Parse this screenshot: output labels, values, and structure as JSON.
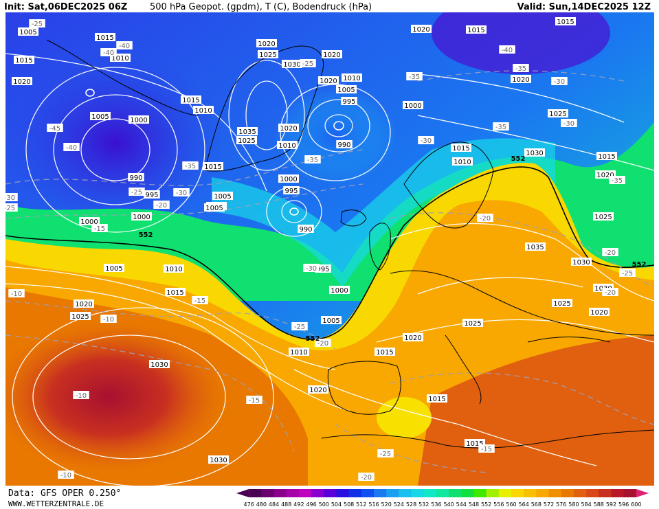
{
  "header": {
    "init": "Init: Sat,06DEC2025 06Z",
    "title": "500 hPa Geopot. (gpdm), T (C), Bodendruck (hPa)",
    "valid": "Valid: Sun,14DEC2025 12Z"
  },
  "footer": {
    "data_source": "Data: GFS OPER 0.250°",
    "website": "WWW.WETTERZENTRALE.DE"
  },
  "colorscale": {
    "labels": [
      "476",
      "480",
      "484",
      "488",
      "492",
      "496",
      "500",
      "504",
      "508",
      "512",
      "516",
      "520",
      "524",
      "528",
      "532",
      "536",
      "540",
      "544",
      "548",
      "552",
      "556",
      "560",
      "564",
      "568",
      "572",
      "576",
      "580",
      "584",
      "588",
      "592",
      "596",
      "600"
    ],
    "colors": [
      "#4a0052",
      "#6a0070",
      "#8a008c",
      "#a600a6",
      "#c000c0",
      "#8800d0",
      "#5a00d8",
      "#2a10e0",
      "#1030e8",
      "#1050f0",
      "#1a78f0",
      "#1aa0f0",
      "#1ac0f0",
      "#18d8e8",
      "#10e8c8",
      "#10e8a0",
      "#10e070",
      "#10e040",
      "#40e800",
      "#a0f000",
      "#e8f000",
      "#f8d800",
      "#f8c000",
      "#f8a800",
      "#f09000",
      "#e87800",
      "#e06010",
      "#d84818",
      "#c83020",
      "#b81828",
      "#a81030",
      "#e02070"
    ]
  },
  "map": {
    "pressure_labels": [
      "1005",
      "1015",
      "1010",
      "1020",
      "1005",
      "1000",
      "990",
      "995",
      "1000",
      "1005",
      "1015",
      "1025",
      "1020",
      "1030",
      "1015",
      "1020",
      "1035",
      "1025",
      "1015",
      "1010",
      "1020",
      "1010",
      "995",
      "990",
      "1000",
      "995",
      "1005",
      "1000",
      "990",
      "995",
      "1005",
      "1010",
      "1015",
      "1020",
      "1000",
      "1005",
      "1010",
      "1020",
      "1015",
      "1030",
      "1010",
      "1015",
      "1005",
      "1005",
      "1010",
      "1030",
      "1025",
      "1015",
      "1020",
      "1025",
      "1030",
      "1035",
      "1025",
      "1020",
      "1020",
      "1030",
      "1025",
      "1020",
      "1015",
      "1015",
      "1020",
      "1020",
      "1025",
      "1030",
      "1030",
      "1015",
      "1000",
      "1005",
      "1010",
      "1015",
      "1020",
      "1025",
      "1030",
      "1030"
    ],
    "temp_labels": [
      "-25",
      "-40",
      "-40",
      "-45",
      "-40",
      "-35",
      "-30",
      "-35",
      "-40",
      "-35",
      "-30",
      "-25",
      "-20",
      "-20",
      "-15",
      "-10",
      "-10",
      "-15",
      "-15",
      "-10",
      "-10",
      "-25",
      "-20",
      "-15",
      "-20",
      "-25",
      "-30",
      "-30",
      "-35",
      "-35",
      "-30",
      "-25",
      "-20",
      "-20",
      "-15",
      "-25",
      "-30",
      "-35",
      "-25",
      "-20"
    ],
    "geopot_labels": [
      "552",
      "552",
      "552",
      "552"
    ]
  }
}
